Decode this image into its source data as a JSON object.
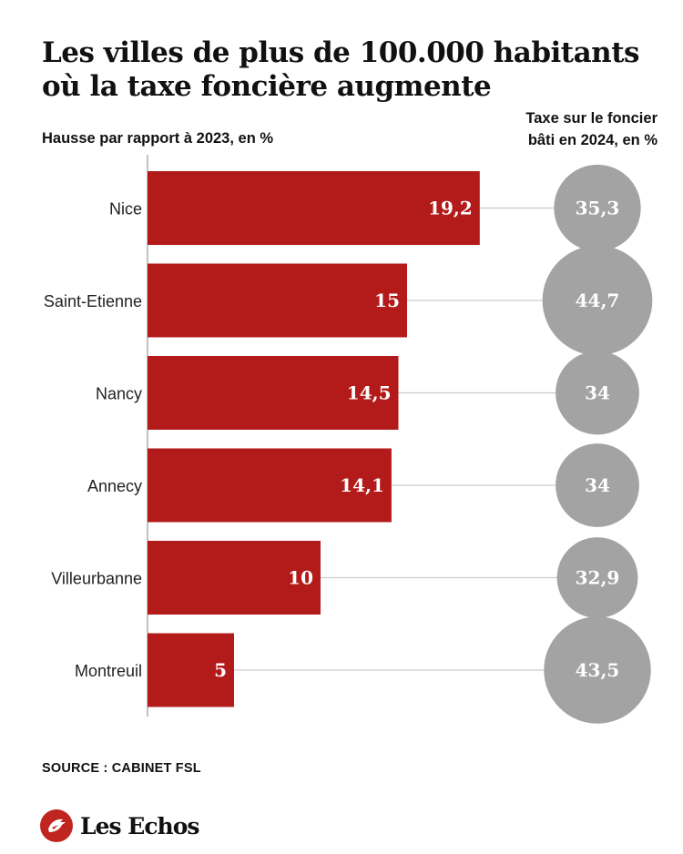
{
  "title": "Les villes de plus de 100.000 habitants où la taxe foncière augmente",
  "subtitle_left": "Hausse par rapport à 2023, en %",
  "subtitle_right_line1": "Taxe sur le foncier",
  "subtitle_right_line2": "bâti en 2024, en %",
  "source": "SOURCE : CABINET FSL",
  "logo_text": "Les Echos",
  "colors": {
    "bar": "#b31b1b",
    "circle": "#a3a3a3",
    "axis": "#999999",
    "connector": "#cccccc"
  },
  "chart_data": {
    "type": "bar",
    "orientation": "horizontal",
    "categories": [
      "Nice",
      "Saint-Etienne",
      "Nancy",
      "Annecy",
      "Villeurbanne",
      "Montreuil"
    ],
    "series": [
      {
        "values": [
          19.2,
          15,
          14.5,
          14.1,
          10,
          5
        ],
        "labels": [
          "19,2",
          "15",
          "14,5",
          "14,1",
          "10",
          "5"
        ]
      },
      {
        "values": [
          35.3,
          44.7,
          34,
          34,
          32.9,
          43.5
        ],
        "labels": [
          "35,3",
          "44,7",
          "34",
          "34",
          "32,9",
          "43,5"
        ],
        "marker": "circle"
      }
    ],
    "xlim": [
      0,
      20
    ],
    "grid": false,
    "legend": "none"
  }
}
